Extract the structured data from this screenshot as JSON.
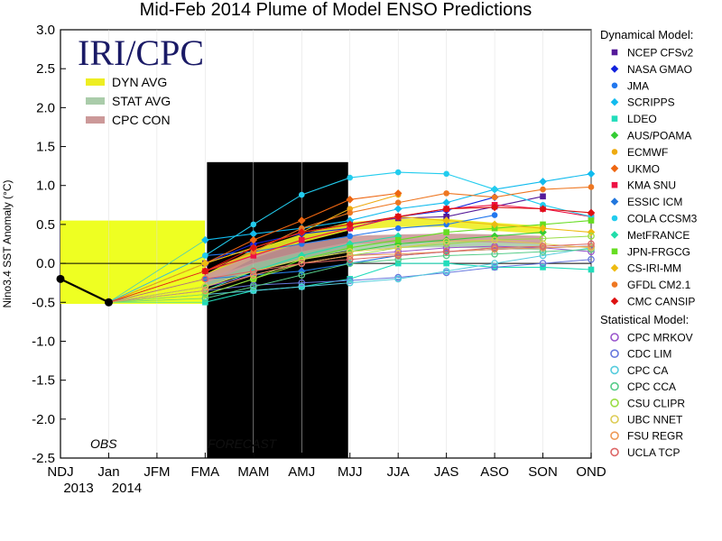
{
  "chart_data": {
    "type": "line",
    "title": "Mid-Feb 2014 Plume of Model ENSO Predictions",
    "ylabel": "Nino3.4 SST Anomaly (°C)",
    "ylim": [
      -2.5,
      3.0
    ],
    "yticks": [
      "3.0",
      "2.5",
      "2.0",
      "1.5",
      "1.0",
      "0.5",
      "0.0",
      "-0.5",
      "-1.0",
      "-1.5",
      "-2.0",
      "-2.5"
    ],
    "categories": [
      "NDJ",
      "Jan",
      "JFM",
      "FMA",
      "MAM",
      "AMJ",
      "MJJ",
      "JJA",
      "JAS",
      "ASO",
      "SON",
      "OND"
    ],
    "xsublabels": [
      "2013",
      "2014"
    ],
    "brand": "IRI/CPC",
    "obs_label": "OBS",
    "forecast_label": "FORECAST",
    "observed": {
      "name": "OBS",
      "x": [
        "NDJ",
        "Jan"
      ],
      "values": [
        -0.2,
        -0.5
      ]
    },
    "averages": [
      {
        "name": "DYN AVG",
        "color": "#eeee22",
        "values": [
          -0.2,
          0.12,
          0.32,
          0.48,
          0.52,
          0.52,
          0.47,
          0.43
        ]
      },
      {
        "name": "STAT AVG",
        "color": "#aaccaa",
        "values": [
          -0.25,
          -0.05,
          0.1,
          0.22,
          0.25,
          0.26,
          0.24,
          0.22
        ]
      },
      {
        "name": "CPC CON",
        "color": "#cc9999",
        "values": [
          -0.2,
          0.05,
          0.2,
          0.3,
          0.32,
          0.33,
          0.32,
          0.3
        ]
      }
    ],
    "dynamical_heading": "Dynamical Model:",
    "statistical_heading": "Statistical Model:",
    "forecast_categories": [
      "FMA",
      "MAM",
      "AMJ",
      "MJJ",
      "JJA",
      "JAS",
      "ASO",
      "SON",
      "OND"
    ],
    "dynamical_series": [
      {
        "name": "NCEP CFSv2",
        "color": "#551a99",
        "values": [
          0.0,
          0.2,
          0.4,
          0.5,
          0.58,
          0.6,
          0.73,
          0.86,
          null
        ]
      },
      {
        "name": "NASA GMAO",
        "color": "#1122dd",
        "values": [
          0.0,
          0.25,
          0.38,
          0.45,
          0.6,
          0.68,
          0.85,
          null,
          null
        ]
      },
      {
        "name": "JMA",
        "color": "#2277ee",
        "values": [
          0.1,
          0.15,
          0.25,
          0.35,
          0.45,
          0.5,
          0.62,
          null,
          null
        ]
      },
      {
        "name": "SCRIPPS",
        "color": "#11bbee",
        "values": [
          0.3,
          0.38,
          0.45,
          0.55,
          0.7,
          0.78,
          0.95,
          1.05,
          1.15
        ]
      },
      {
        "name": "LDEO",
        "color": "#22ddbb",
        "values": [
          -0.5,
          -0.35,
          -0.3,
          -0.2,
          0.0,
          0.0,
          -0.05,
          -0.05,
          -0.08
        ]
      },
      {
        "name": "AUS/POAMA",
        "color": "#33cc33",
        "values": [
          -0.3,
          -0.1,
          0.05,
          0.15,
          0.25,
          0.3,
          0.35,
          0.4,
          null
        ]
      },
      {
        "name": "ECMWF",
        "color": "#eeaa11",
        "values": [
          0.0,
          0.2,
          0.4,
          0.7,
          0.88,
          null,
          null,
          null,
          null
        ]
      },
      {
        "name": "UKMO",
        "color": "#ee6611",
        "values": [
          0.0,
          0.3,
          0.55,
          0.82,
          0.9,
          null,
          null,
          null,
          null
        ]
      },
      {
        "name": "KMA SNU",
        "color": "#ee1144",
        "values": [
          -0.1,
          0.1,
          0.3,
          0.45,
          0.6,
          0.7,
          0.75,
          0.7,
          0.6
        ]
      },
      {
        "name": "ESSIC ICM",
        "color": "#2277dd",
        "values": [
          -0.2,
          -0.15,
          -0.1,
          0.0,
          0.1,
          0.15,
          0.18,
          0.2,
          0.22
        ]
      },
      {
        "name": "COLA CCSM3",
        "color": "#22ccee",
        "values": [
          0.1,
          0.5,
          0.88,
          1.1,
          1.17,
          1.15,
          0.95,
          0.75,
          0.6
        ]
      },
      {
        "name": "MetFRANCE",
        "color": "#22ddaa",
        "values": [
          -0.35,
          -0.1,
          0.1,
          0.25,
          0.35,
          null,
          null,
          null,
          null
        ]
      },
      {
        "name": "JPN-FRGCG",
        "color": "#66dd22",
        "values": [
          -0.4,
          -0.2,
          0.05,
          0.2,
          0.3,
          0.4,
          0.45,
          0.5,
          0.55
        ]
      },
      {
        "name": "CS-IRI-MM",
        "color": "#eebb11",
        "values": [
          0.0,
          0.2,
          0.4,
          0.5,
          0.6,
          0.55,
          0.5,
          0.45,
          0.4
        ]
      },
      {
        "name": "GFDL CM2.1",
        "color": "#ee7722",
        "values": [
          -0.1,
          0.15,
          0.45,
          0.65,
          0.78,
          0.9,
          0.85,
          0.95,
          0.98
        ]
      },
      {
        "name": "CMC CANSIP",
        "color": "#dd1111",
        "values": [
          -0.1,
          0.2,
          0.4,
          0.5,
          0.6,
          0.7,
          0.72,
          0.7,
          0.65
        ]
      }
    ],
    "statistical_series": [
      {
        "name": "CPC MRKOV",
        "color": "#9955cc",
        "values": [
          -0.3,
          -0.15,
          0.0,
          0.1,
          0.15,
          0.2,
          0.22,
          0.2,
          0.15
        ]
      },
      {
        "name": "CDC LIM",
        "color": "#6677dd",
        "values": [
          -0.35,
          -0.28,
          -0.25,
          -0.22,
          -0.18,
          -0.12,
          -0.05,
          0.0,
          0.05
        ]
      },
      {
        "name": "CPC CA",
        "color": "#55ccdd",
        "values": [
          -0.4,
          -0.35,
          -0.3,
          -0.25,
          -0.2,
          -0.1,
          0.0,
          0.1,
          0.2
        ]
      },
      {
        "name": "CPC CCA",
        "color": "#55cc88",
        "values": [
          -0.45,
          -0.3,
          -0.15,
          0.0,
          0.05,
          0.1,
          0.12,
          0.15,
          0.18
        ]
      },
      {
        "name": "CSU CLIPR",
        "color": "#99dd44",
        "values": [
          -0.4,
          -0.2,
          0.0,
          0.1,
          0.2,
          0.25,
          0.3,
          0.32,
          0.35
        ]
      },
      {
        "name": "UBC NNET",
        "color": "#ddcc55",
        "values": [
          -0.3,
          -0.1,
          0.05,
          0.15,
          0.2,
          0.28,
          0.3,
          0.25,
          0.2
        ]
      },
      {
        "name": "FSU REGR",
        "color": "#ee9955",
        "values": [
          -0.35,
          -0.15,
          0.0,
          0.1,
          0.12,
          0.15,
          0.18,
          0.2,
          0.22
        ]
      },
      {
        "name": "UCLA TCP",
        "color": "#dd6666",
        "values": [
          -0.2,
          -0.1,
          0.0,
          0.05,
          0.1,
          0.15,
          0.2,
          0.22,
          0.25
        ]
      }
    ]
  }
}
